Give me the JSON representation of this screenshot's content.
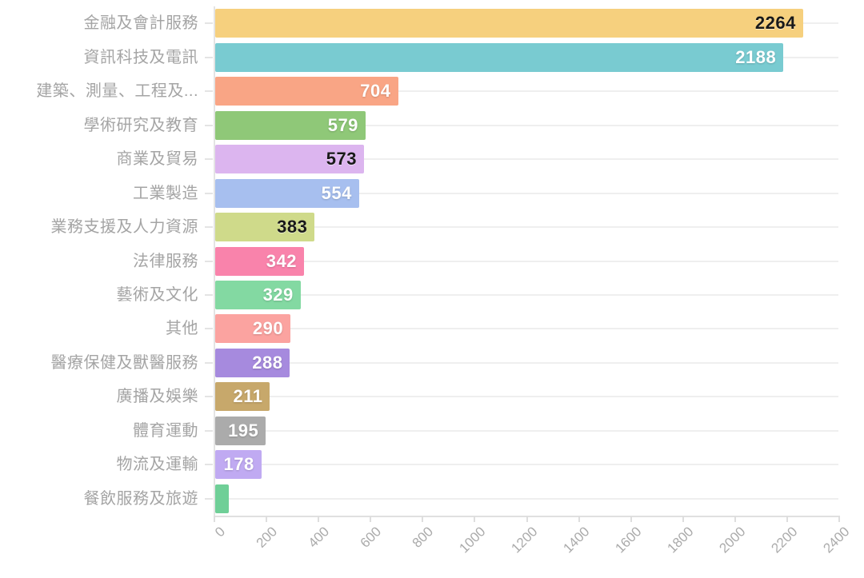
{
  "chart_data": {
    "type": "bar",
    "orientation": "horizontal",
    "title": "",
    "xlabel": "",
    "ylabel": "",
    "xlim": [
      0,
      2400
    ],
    "grid": "per-category horizontal gridlines, light gray",
    "legend": "none",
    "categories": [
      "金融及會計服務",
      "資訊科技及電訊",
      "建築、測量、工程及...",
      "學術研究及教育",
      "商業及貿易",
      "工業製造",
      "業務支援及人力資源",
      "法律服務",
      "藝術及文化",
      "其他",
      "醫療保健及獸醫服務",
      "廣播及娛樂",
      "體育運動",
      "物流及運輸",
      "餐飲服務及旅遊"
    ],
    "values": [
      2264,
      2188,
      704,
      579,
      573,
      554,
      383,
      342,
      329,
      290,
      288,
      211,
      195,
      178,
      52
    ],
    "x_tick_labels": [
      "0",
      "200",
      "400",
      "600",
      "800",
      "1000",
      "1200",
      "1400",
      "1600",
      "1800",
      "2000",
      "2200",
      "2400"
    ],
    "x_tick_values": [
      0,
      200,
      400,
      600,
      800,
      1000,
      1200,
      1400,
      1600,
      1800,
      2000,
      2200,
      2400
    ],
    "bars": [
      {
        "label": "金融及會計服務",
        "value": 2264,
        "display_value": "2264",
        "color": "#f6d07e",
        "value_text": "dark",
        "value_color": "#191919",
        "show_value": true
      },
      {
        "label": "資訊科技及電訊",
        "value": 2188,
        "display_value": "2188",
        "color": "#79cbd1",
        "value_text": "light",
        "value_color": "#ffffff",
        "show_value": true
      },
      {
        "label": "建築、測量、工程及...",
        "value": 704,
        "display_value": "704",
        "color": "#f9a585",
        "value_text": "light",
        "value_color": "#ffffff",
        "show_value": true
      },
      {
        "label": "學術研究及教育",
        "value": 579,
        "display_value": "579",
        "color": "#8fc878",
        "value_text": "light",
        "value_color": "#ffffff",
        "show_value": true
      },
      {
        "label": "商業及貿易",
        "value": 573,
        "display_value": "573",
        "color": "#dcb5ef",
        "value_text": "dark",
        "value_color": "#191919",
        "show_value": true
      },
      {
        "label": "工業製造",
        "value": 554,
        "display_value": "554",
        "color": "#a7bfef",
        "value_text": "light",
        "value_color": "#ffffff",
        "show_value": true
      },
      {
        "label": "業務支援及人力資源",
        "value": 383,
        "display_value": "383",
        "color": "#cfda8a",
        "value_text": "dark",
        "value_color": "#191919",
        "show_value": true
      },
      {
        "label": "法律服務",
        "value": 342,
        "display_value": "342",
        "color": "#f983ab",
        "value_text": "light",
        "value_color": "#ffffff",
        "show_value": true
      },
      {
        "label": "藝術及文化",
        "value": 329,
        "display_value": "329",
        "color": "#83d9a2",
        "value_text": "light",
        "value_color": "#ffffff",
        "show_value": true
      },
      {
        "label": "其他",
        "value": 290,
        "display_value": "290",
        "color": "#fba3a0",
        "value_text": "light",
        "value_color": "#ffffff",
        "show_value": true
      },
      {
        "label": "醫療保健及獸醫服務",
        "value": 288,
        "display_value": "288",
        "color": "#a68ade",
        "value_text": "light",
        "value_color": "#ffffff",
        "show_value": true
      },
      {
        "label": "廣播及娛樂",
        "value": 211,
        "display_value": "211",
        "color": "#c7a86b",
        "value_text": "light",
        "value_color": "#ffffff",
        "show_value": true
      },
      {
        "label": "體育運動",
        "value": 195,
        "display_value": "195",
        "color": "#ababab",
        "value_text": "light",
        "value_color": "#ffffff",
        "show_value": true
      },
      {
        "label": "物流及運輸",
        "value": 178,
        "display_value": "178",
        "color": "#c0aaf2",
        "value_text": "light",
        "value_color": "#ffffff",
        "show_value": true
      },
      {
        "label": "餐飲服務及旅遊",
        "value": 52,
        "display_value": "",
        "color": "#6fcf97",
        "value_text": "light",
        "value_color": "#ffffff",
        "show_value": false
      }
    ],
    "axis_colors": {
      "axis_line": "#e4e4e4",
      "gridline": "#efefef",
      "tick_label": "#ababab",
      "category_label": "#a4a4a4"
    }
  }
}
